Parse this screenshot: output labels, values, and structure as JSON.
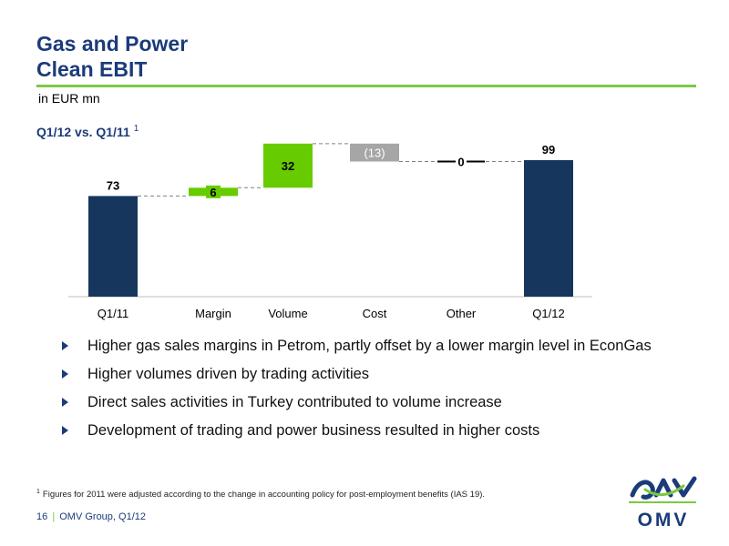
{
  "title": {
    "line1": "Gas and Power",
    "line2": "Clean EBIT"
  },
  "unit": "in EUR mn",
  "subtitle": {
    "text": "Q1/12 vs. Q1/11",
    "footnote_mark": "1"
  },
  "chart_data": {
    "type": "bar",
    "subtype": "waterfall",
    "categories": [
      "Q1/11",
      "Margin",
      "Volume",
      "Cost",
      "Other",
      "Q1/12"
    ],
    "values": [
      73,
      6,
      32,
      -13,
      0,
      99
    ],
    "kinds": [
      "total",
      "delta",
      "delta",
      "delta",
      "delta",
      "total"
    ],
    "value_labels": [
      "73",
      "6",
      "32",
      "(13)",
      "0",
      "99"
    ],
    "ylim": [
      0,
      135
    ],
    "colors": {
      "total": "#17365d",
      "increase": "#66cc00",
      "decrease": "#a6a6a6",
      "zero": "#000000",
      "connector": "#808080"
    },
    "grid": false,
    "legend": "none"
  },
  "bullets": [
    "Higher gas sales margins in Petrom, partly offset by a lower margin level in EconGas",
    "Higher volumes driven by trading activities",
    "Direct sales activities in Turkey contributed to volume increase",
    "Development of trading and power business resulted in higher costs"
  ],
  "footnote": {
    "mark": "1",
    "text": "Figures for 2011 were adjusted according to the change in accounting policy for post-employment benefits (IAS 19)."
  },
  "footer": {
    "page": "16",
    "separator": "|",
    "text": "OMV Group, Q1/12"
  },
  "logo": {
    "text": "OMV",
    "colors": {
      "blue": "#1b3b7a",
      "green": "#7ac943"
    }
  }
}
